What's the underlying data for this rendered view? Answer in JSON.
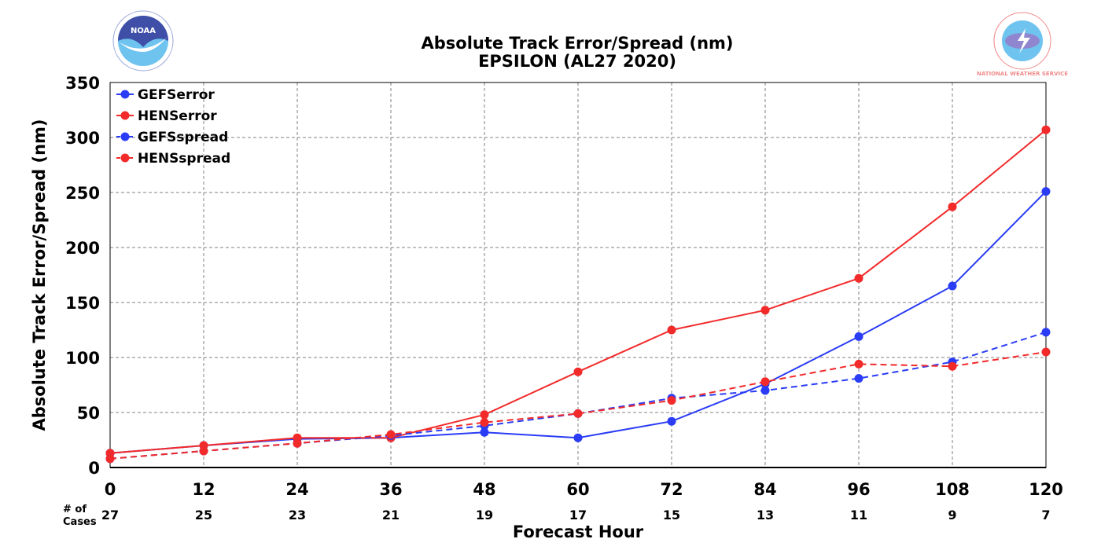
{
  "header": {
    "title_line1": "Absolute Track Error/Spread (nm)",
    "title_line2": "EPSILON (AL27 2020)"
  },
  "logos": {
    "left": {
      "icon": "noaa-logo-icon",
      "text": "NOAA"
    },
    "right": {
      "icon": "nws-logo-icon",
      "text": "NATIONAL WEATHER SERVICE"
    }
  },
  "cases": {
    "label_line1": "# of",
    "label_line2": "Cases",
    "values": [
      27,
      25,
      23,
      21,
      19,
      17,
      15,
      13,
      11,
      9,
      7
    ]
  },
  "chart_data": {
    "type": "line",
    "x": [
      0,
      12,
      24,
      36,
      48,
      60,
      72,
      84,
      96,
      108,
      120
    ],
    "xlabel": "Forecast Hour",
    "ylabel": "Absolute Track Error/Spread (nm)",
    "xlim": [
      0,
      120
    ],
    "ylim": [
      0,
      350
    ],
    "xticks": [
      0,
      12,
      24,
      36,
      48,
      60,
      72,
      84,
      96,
      108,
      120
    ],
    "yticks": [
      0,
      50,
      100,
      150,
      200,
      250,
      300,
      350
    ],
    "grid": true,
    "legend_position": "top-left",
    "series": [
      {
        "name": "GEFSerror",
        "color": "#2a3cf5",
        "style": "solid",
        "values": [
          13,
          20,
          26,
          27,
          32,
          27,
          42,
          76,
          119,
          165,
          251
        ]
      },
      {
        "name": "HENSerror",
        "color": "#f22a2a",
        "style": "solid",
        "values": [
          13,
          20,
          27,
          27,
          48,
          87,
          125,
          143,
          172,
          237,
          307
        ]
      },
      {
        "name": "GEFSspread",
        "color": "#2a3cf5",
        "style": "dashed",
        "values": [
          8,
          15,
          22,
          29,
          38,
          49,
          63,
          70,
          81,
          96,
          123
        ]
      },
      {
        "name": "HENSspread",
        "color": "#f22a2a",
        "style": "dashed",
        "values": [
          8,
          15,
          22,
          30,
          41,
          49,
          61,
          78,
          94,
          92,
          105
        ]
      }
    ]
  }
}
